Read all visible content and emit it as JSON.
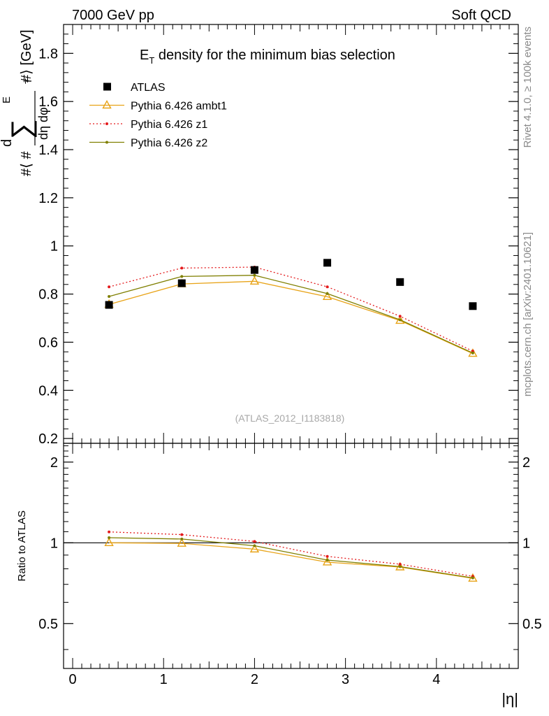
{
  "header": {
    "left": "7000 GeV pp",
    "right": "Soft QCD"
  },
  "side_labels": {
    "rivet": "Rivet 4.1.0, ≥ 100k events",
    "mcplots": "mcplots.cern.ch [arXiv:2401.10621]"
  },
  "chart_data": [
    {
      "type": "scatter",
      "panel": "main",
      "title_main": "E",
      "title_sub": "T",
      "title_rest": " density  for the minimum bias selection",
      "ylabel_text": "#⟨ # ∑ E T #⟩ / dη dφ [GeV]",
      "ylabel_parts": {
        "open": "#⟨ #",
        "sum": "∑",
        "e": "E",
        "t": "T",
        "close": "#⟩ [GeV]",
        "d": "d",
        "denominator": "dη dφ"
      },
      "watermark": "(ATLAS_2012_I1183818)",
      "xlim": [
        -0.1,
        4.9
      ],
      "ylim": [
        0.18,
        1.92
      ],
      "yticks": [
        0.2,
        0.4,
        0.6,
        0.8,
        1,
        1.2,
        1.4,
        1.6,
        1.8
      ],
      "ytick_labels": [
        "0.2",
        "0.4",
        "0.6",
        "0.8",
        "1",
        "1.2",
        "1.4",
        "1.6",
        "1.8"
      ],
      "x": [
        0.4,
        1.2,
        2.0,
        2.8,
        3.6,
        4.4
      ],
      "series": [
        {
          "name": "ATLAS",
          "style": "data",
          "color": "#000000",
          "values": [
            0.755,
            0.845,
            0.9,
            0.93,
            0.85,
            0.75
          ]
        },
        {
          "name": "Pythia 6.426 ambt1",
          "style": "triangle",
          "color": "#e8a317",
          "values": [
            0.757,
            0.842,
            0.853,
            0.789,
            0.69,
            0.553
          ]
        },
        {
          "name": "Pythia 6.426 z1",
          "style": "dotted",
          "color": "#e41a1c",
          "values": [
            0.83,
            0.908,
            0.912,
            0.83,
            0.708,
            0.563
          ]
        },
        {
          "name": "Pythia 6.426 z2",
          "style": "solid-dot",
          "color": "#7f7f00",
          "values": [
            0.79,
            0.873,
            0.878,
            0.802,
            0.693,
            0.555
          ]
        }
      ]
    },
    {
      "type": "line",
      "panel": "ratio",
      "ylabel": "Ratio to ATLAS",
      "xlabel": "|η|",
      "xlim": [
        -0.1,
        4.9
      ],
      "ylim": [
        0.34,
        2.35
      ],
      "yticks": [
        0.5,
        1,
        2
      ],
      "ytick_labels": [
        "0.5",
        "1",
        "2"
      ],
      "xticks": [
        0,
        1,
        2,
        3,
        4
      ],
      "xtick_labels": [
        "0",
        "1",
        "2",
        "3",
        "4"
      ],
      "x": [
        0.4,
        1.2,
        2.0,
        2.8,
        3.6,
        4.4
      ],
      "series": [
        {
          "name": "Pythia 6.426 ambt1",
          "style": "triangle",
          "color": "#e8a317",
          "values": [
            1.0,
            0.995,
            0.947,
            0.847,
            0.812,
            0.737
          ]
        },
        {
          "name": "Pythia 6.426 z1",
          "style": "dotted",
          "color": "#e41a1c",
          "values": [
            1.098,
            1.073,
            1.012,
            0.89,
            0.832,
            0.75
          ]
        },
        {
          "name": "Pythia 6.426 z2",
          "style": "solid-dot",
          "color": "#7f7f00",
          "values": [
            1.045,
            1.033,
            0.975,
            0.862,
            0.815,
            0.74
          ]
        }
      ]
    }
  ]
}
